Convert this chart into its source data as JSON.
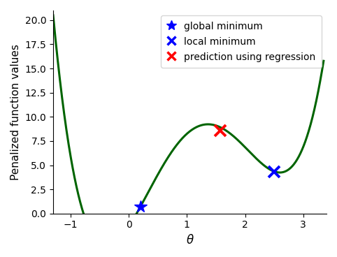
{
  "title": "",
  "xlabel": "$\\theta$",
  "ylabel": "Penalized function values",
  "xlim": [
    -1.3,
    3.4
  ],
  "ylim": [
    0,
    21
  ],
  "yticks": [
    0.0,
    2.5,
    5.0,
    7.5,
    10.0,
    12.5,
    15.0,
    17.5,
    20.0
  ],
  "xticks": [
    -1,
    0,
    1,
    2,
    3
  ],
  "line_color": "#006400",
  "line_width": 2.2,
  "global_min_x": 0.2,
  "global_min_y": 0.7,
  "local_min_x": 2.5,
  "local_min_y": 4.35,
  "regression_x": 1.57,
  "regression_y": 8.6,
  "legend_entries": [
    "global minimum",
    "local minimum",
    "prediction using regression"
  ],
  "star_color": "#0000FF",
  "x_blue_color": "#0000FF",
  "x_red_color": "#FF0000",
  "background_color": "#ffffff",
  "figsize": [
    4.82,
    3.68
  ],
  "dpi": 100
}
